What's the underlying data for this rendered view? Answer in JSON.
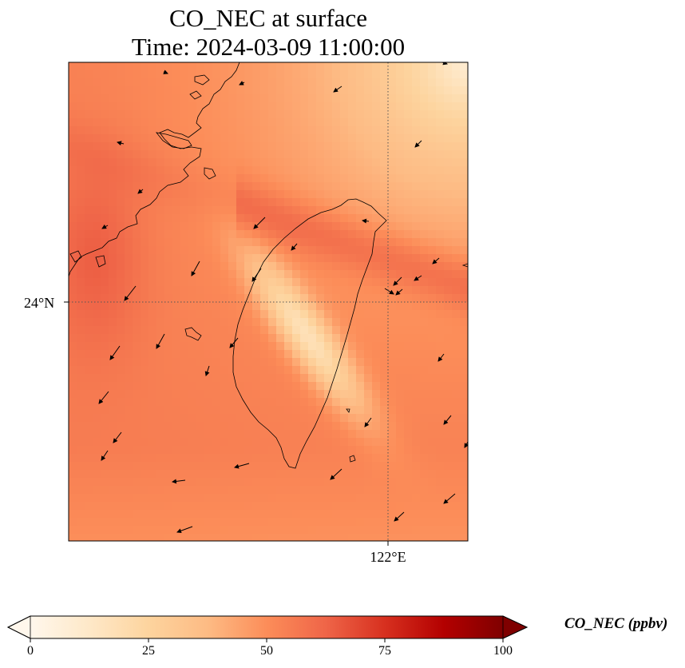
{
  "title": {
    "line1": "CO_NEC at surface",
    "line2": "Time: 2024-03-09 11:00:00"
  },
  "axes": {
    "lat_tick": "24°N",
    "lon_tick": "122°E",
    "gridlines": "dotted"
  },
  "colorbar": {
    "label": "CO_NEC (ppbv)",
    "ticks": [
      "0",
      "25",
      "50",
      "75",
      "100"
    ],
    "colormap": "OrRd",
    "extend": "both",
    "stops": [
      "#fff7ec",
      "#fee8c8",
      "#fdd49e",
      "#fdbb84",
      "#fc8d59",
      "#ef6548",
      "#d7301f",
      "#b30000",
      "#7f0000"
    ]
  },
  "chart_data": {
    "type": "heatmap",
    "title": "CO_NEC at surface",
    "subtitle": "Time: 2024-03-09 11:00:00",
    "variable": "CO_NEC",
    "units": "ppbv",
    "value_range": [
      0,
      100
    ],
    "x_tick_labels": [
      "122°E"
    ],
    "y_tick_labels": [
      "24°N"
    ],
    "lon_range": [
      119.35,
      122.65
    ],
    "lat_range": [
      22.0,
      26.0
    ],
    "field_summary": [
      {
        "region": "northeast corner (open sea)",
        "value": 12
      },
      {
        "region": "northwest offshore, along China coast",
        "value": 62
      },
      {
        "region": "band across northern Taiwan",
        "value": 68
      },
      {
        "region": "central Taiwan mountains",
        "value": 22
      },
      {
        "region": "Taiwan Strait",
        "value": 58
      },
      {
        "region": "southern sea",
        "value": 52
      },
      {
        "region": "east of Taiwan",
        "value": 60
      }
    ],
    "wind_vectors_shown": true
  }
}
